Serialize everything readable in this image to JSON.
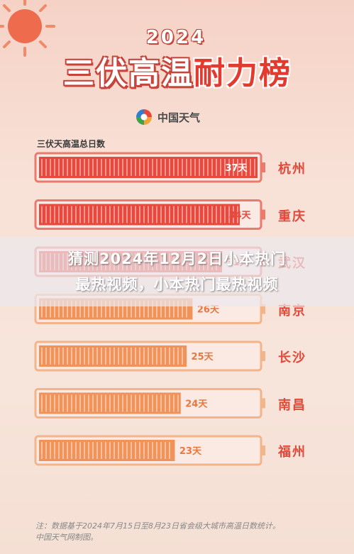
{
  "header": {
    "year": "2024",
    "title_part1": "三伏高温",
    "title_part2": "耐力榜",
    "brand": "中国天气"
  },
  "chart_data": {
    "type": "bar",
    "title": "三伏高温耐力榜",
    "subtitle": "三伏天高温总日数",
    "categories": [
      "杭州",
      "重庆",
      "武汉",
      "南京",
      "长沙",
      "南昌",
      "福州"
    ],
    "values": [
      37,
      34,
      31,
      26,
      25,
      24,
      23
    ],
    "value_labels": [
      "37天",
      "34天",
      "31天",
      "26天",
      "25天",
      "24天",
      "23天"
    ],
    "xlim": [
      0,
      37
    ],
    "colors": {
      "hot": "#e64a3e",
      "warm": "#f0935a",
      "frame": "#f0a89c",
      "city": "#e04a3a"
    }
  },
  "overlay": {
    "line1": "猜测2024年12月2日小本热门",
    "line2": "最热视频，小本热门最热视频"
  },
  "footer": {
    "line1": "注：数据基于2024年7月15日至8月23日省会级大城市高温日数统计。",
    "line2": "中国天气网制图。"
  }
}
